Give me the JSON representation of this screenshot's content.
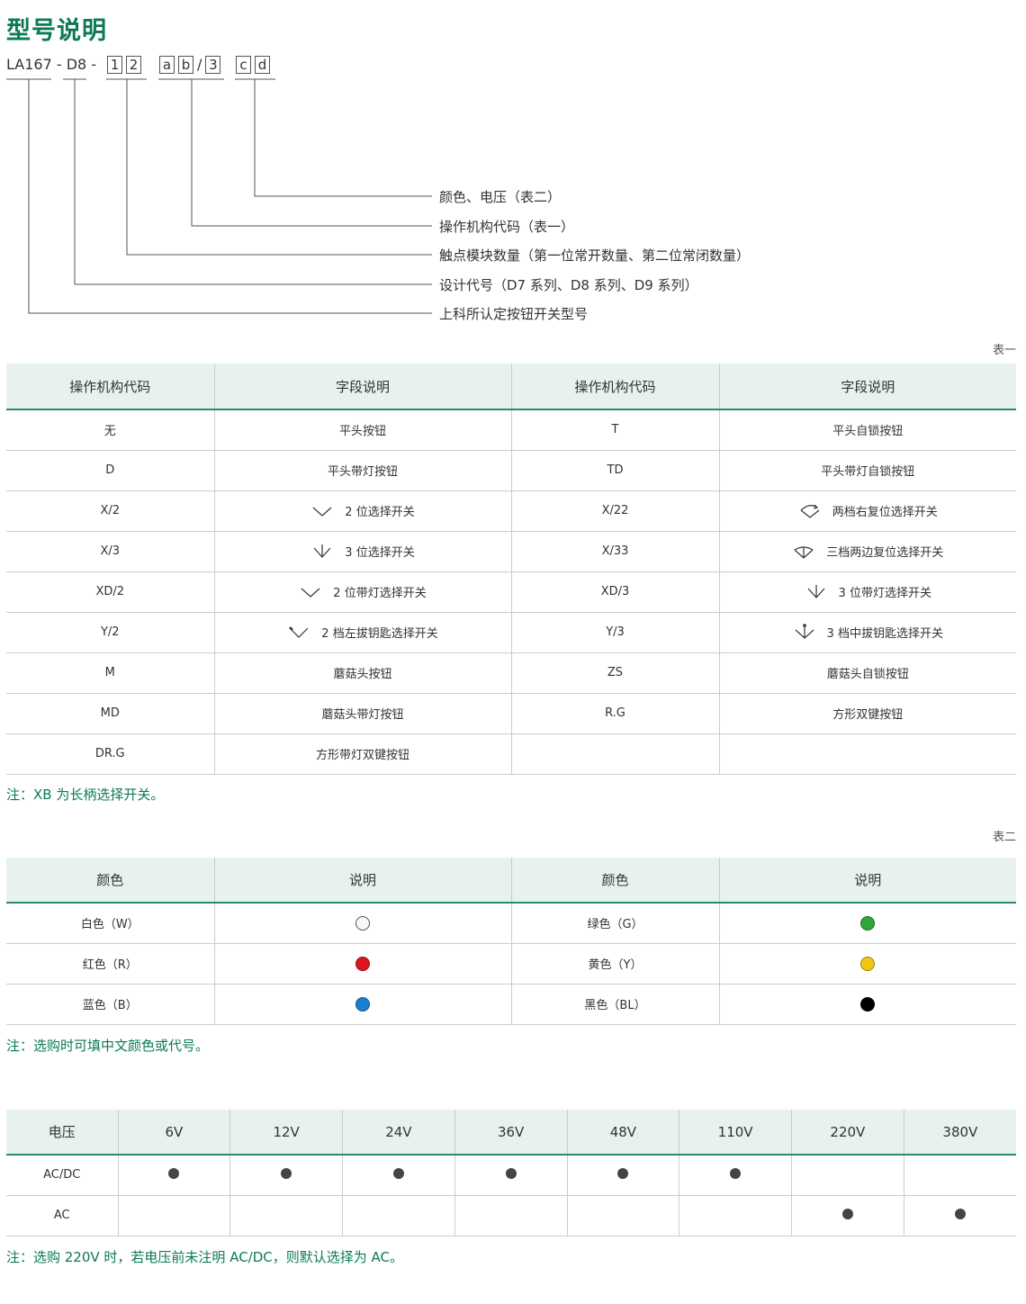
{
  "title": "型号说明",
  "model_code": {
    "prefix": "LA167",
    "series": "D8",
    "boxes_1": [
      "1",
      "2"
    ],
    "boxes_2": [
      "a",
      "b"
    ],
    "slash": "/",
    "boxes_2b": [
      "3"
    ],
    "boxes_3": [
      "c",
      "d"
    ],
    "dash": "-"
  },
  "diagram_labels": [
    "颜色、电压（表二）",
    "操作机构代码（表一）",
    "触点模块数量（第一位常开数量、第二位常闭数量）",
    "设计代号（D7 系列、D8 系列、D9 系列）",
    "上科所认定按钮开关型号"
  ],
  "table1": {
    "caption": "表一",
    "headers": [
      "操作机构代码",
      "字段说明",
      "操作机构代码",
      "字段说明"
    ],
    "rows": [
      [
        {
          "code": "无",
          "desc": "平头按钮",
          "icon": ""
        },
        {
          "code": "T",
          "desc": "平头自锁按钮",
          "icon": ""
        }
      ],
      [
        {
          "code": "D",
          "desc": "平头带灯按钮",
          "icon": ""
        },
        {
          "code": "TD",
          "desc": "平头带灯自锁按钮",
          "icon": ""
        }
      ],
      [
        {
          "code": "X/2",
          "desc": "2 位选择开关",
          "icon": "chevron-down-icon"
        },
        {
          "code": "X/22",
          "desc": "两档右复位选择开关",
          "icon": "arc-chevron-icon"
        }
      ],
      [
        {
          "code": "X/3",
          "desc": "3 位选择开关",
          "icon": "arrow-down-icon"
        },
        {
          "code": "X/33",
          "desc": "三档两边复位选择开关",
          "icon": "fan-icon"
        }
      ],
      [
        {
          "code": "XD/2",
          "desc": "2 位带灯选择开关",
          "icon": "chevron-down-icon"
        },
        {
          "code": "XD/3",
          "desc": "3 位带灯选择开关",
          "icon": "arrow-down-icon"
        }
      ],
      [
        {
          "code": "Y/2",
          "desc": "2 档左拔钥匙选择开关",
          "icon": "key-left-chevron-icon"
        },
        {
          "code": "Y/3",
          "desc": "3 档中拔钥匙选择开关",
          "icon": "key-center-arrow-icon"
        }
      ],
      [
        {
          "code": "M",
          "desc": "蘑菇头按钮",
          "icon": ""
        },
        {
          "code": "ZS",
          "desc": "蘑菇头自锁按钮",
          "icon": ""
        }
      ],
      [
        {
          "code": "MD",
          "desc": "蘑菇头带灯按钮",
          "icon": ""
        },
        {
          "code": "R.G",
          "desc": "方形双键按钮",
          "icon": ""
        }
      ],
      [
        {
          "code": "DR.G",
          "desc": "方形带灯双键按钮",
          "icon": ""
        },
        {
          "code": "",
          "desc": "",
          "icon": ""
        }
      ]
    ],
    "note": "注：XB 为长柄选择开关。"
  },
  "table2": {
    "caption": "表二",
    "headers": [
      "颜色",
      "说明",
      "颜色",
      "说明"
    ],
    "rows": [
      [
        {
          "name": "白色（W）",
          "color": "#f4f8fa"
        },
        {
          "name": "绿色（G）",
          "color": "#2fa53a"
        }
      ],
      [
        {
          "name": "红色（R）",
          "color": "#e0141e"
        },
        {
          "name": "黄色（Y）",
          "color": "#f2c511"
        }
      ],
      [
        {
          "name": "蓝色（B）",
          "color": "#1a7fd0"
        },
        {
          "name": "黑色（BL）",
          "color": "#000000"
        }
      ]
    ],
    "note": "注：选购时可填中文颜色或代号。"
  },
  "table3": {
    "header_label": "电压",
    "voltages": [
      "6V",
      "12V",
      "24V",
      "36V",
      "48V",
      "110V",
      "220V",
      "380V"
    ],
    "rows": [
      {
        "label": "AC/DC",
        "available": [
          true,
          true,
          true,
          true,
          true,
          true,
          false,
          false
        ]
      },
      {
        "label": "AC",
        "available": [
          false,
          false,
          false,
          false,
          false,
          false,
          true,
          true
        ]
      }
    ],
    "note": "注：选购 220V 时，若电压前未注明 AC/DC，则默认选择为 AC。"
  },
  "colors": {
    "accent": "#0b7a55",
    "header_bg": "#e7f2ec",
    "header_rule": "#2b8a68"
  }
}
